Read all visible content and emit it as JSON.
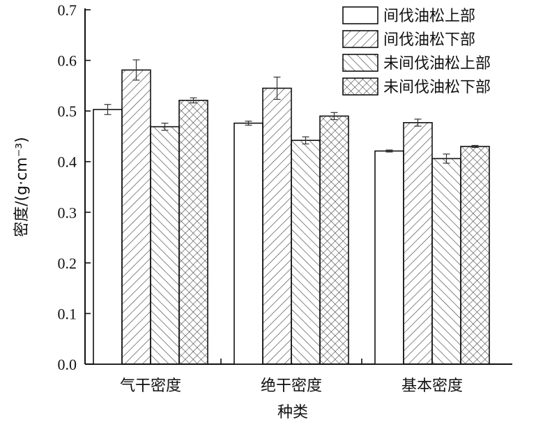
{
  "chart_data": {
    "type": "bar",
    "title": "",
    "xlabel": "种类",
    "ylabel": "密度/(g·cm⁻³)",
    "ylim": [
      0,
      0.7
    ],
    "yticks": [
      "0.0",
      "0.1",
      "0.2",
      "0.3",
      "0.4",
      "0.5",
      "0.6",
      "0.7"
    ],
    "categories": [
      "气干密度",
      "绝干密度",
      "基本密度"
    ],
    "series": [
      {
        "name": "间伐油松上部",
        "values": [
          0.503,
          0.476,
          0.421
        ],
        "errors": [
          0.01,
          0.004,
          0.002
        ],
        "pattern": "blank"
      },
      {
        "name": "间伐油松下部",
        "values": [
          0.581,
          0.545,
          0.477
        ],
        "errors": [
          0.02,
          0.022,
          0.007
        ],
        "pattern": "diag-right"
      },
      {
        "name": "未间伐油松上部",
        "values": [
          0.469,
          0.442,
          0.406
        ],
        "errors": [
          0.007,
          0.007,
          0.009
        ],
        "pattern": "diag-left"
      },
      {
        "name": "未间伐油松下部",
        "values": [
          0.521,
          0.49,
          0.43
        ],
        "errors": [
          0.005,
          0.007,
          0.002
        ],
        "pattern": "cross"
      }
    ],
    "legend_position": "top-right",
    "grid": false
  }
}
